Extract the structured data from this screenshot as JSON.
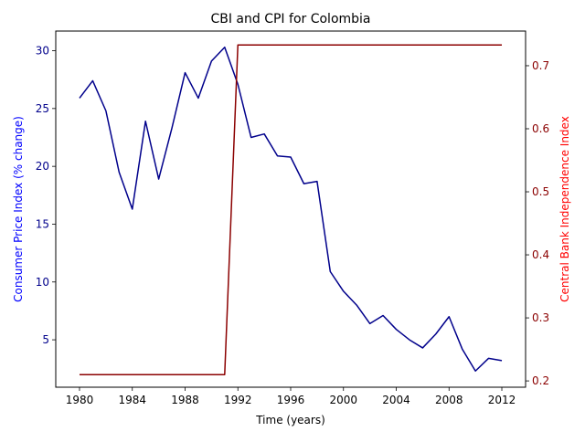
{
  "chart_data": {
    "type": "line",
    "title": "CBI and CPI for Colombia",
    "xlabel": "Time (years)",
    "ylabel_left": "Consumer Price Index (% change)",
    "ylabel_right": "Central Bank Independence Index",
    "xlim": [
      1978.2,
      2013.8
    ],
    "ylim_left": [
      0.9,
      31.7
    ],
    "ylim_right": [
      0.19,
      0.755
    ],
    "x_ticks": [
      1980,
      1984,
      1988,
      1992,
      1996,
      2000,
      2004,
      2008,
      2012
    ],
    "y_ticks_left": [
      5,
      10,
      15,
      20,
      25,
      30
    ],
    "y_ticks_right": [
      0.2,
      0.3,
      0.4,
      0.5,
      0.6,
      0.7
    ],
    "grid": false,
    "legend": "none",
    "colors": {
      "cpi": "#00008b",
      "cbi": "#8b0000",
      "right_axis_label": "#ff0000",
      "left_axis_label": "#0000ff"
    },
    "series": [
      {
        "axis": "left",
        "x": [
          1980,
          1981,
          1982,
          1983,
          1984,
          1985,
          1986,
          1987,
          1988,
          1989,
          1990,
          1991,
          1992,
          1993,
          1994,
          1995,
          1996,
          1997,
          1998,
          1999,
          2000,
          2001,
          2002,
          2003,
          2004,
          2005,
          2006,
          2007,
          2008,
          2009,
          2010,
          2011,
          2012
        ],
        "values": [
          25.9,
          27.4,
          24.8,
          19.5,
          16.3,
          23.9,
          18.9,
          23.3,
          28.1,
          25.9,
          29.1,
          30.3,
          27.1,
          22.5,
          22.8,
          20.9,
          20.8,
          18.5,
          18.7,
          10.9,
          9.2,
          8.0,
          6.4,
          7.1,
          5.9,
          5.0,
          4.3,
          5.5,
          7.0,
          4.2,
          2.3,
          3.4,
          3.2
        ]
      },
      {
        "axis": "right",
        "x": [
          1980,
          1981,
          1982,
          1983,
          1984,
          1985,
          1986,
          1987,
          1988,
          1989,
          1990,
          1991,
          1992,
          1993,
          1994,
          1995,
          1996,
          1997,
          1998,
          1999,
          2000,
          2001,
          2002,
          2003,
          2004,
          2005,
          2006,
          2007,
          2008,
          2009,
          2010,
          2011,
          2012
        ],
        "values": [
          0.21,
          0.21,
          0.21,
          0.21,
          0.21,
          0.21,
          0.21,
          0.21,
          0.21,
          0.21,
          0.21,
          0.21,
          0.733,
          0.733,
          0.733,
          0.733,
          0.733,
          0.733,
          0.733,
          0.733,
          0.733,
          0.733,
          0.733,
          0.733,
          0.733,
          0.733,
          0.733,
          0.733,
          0.733,
          0.733,
          0.733,
          0.733,
          0.733
        ]
      }
    ]
  }
}
